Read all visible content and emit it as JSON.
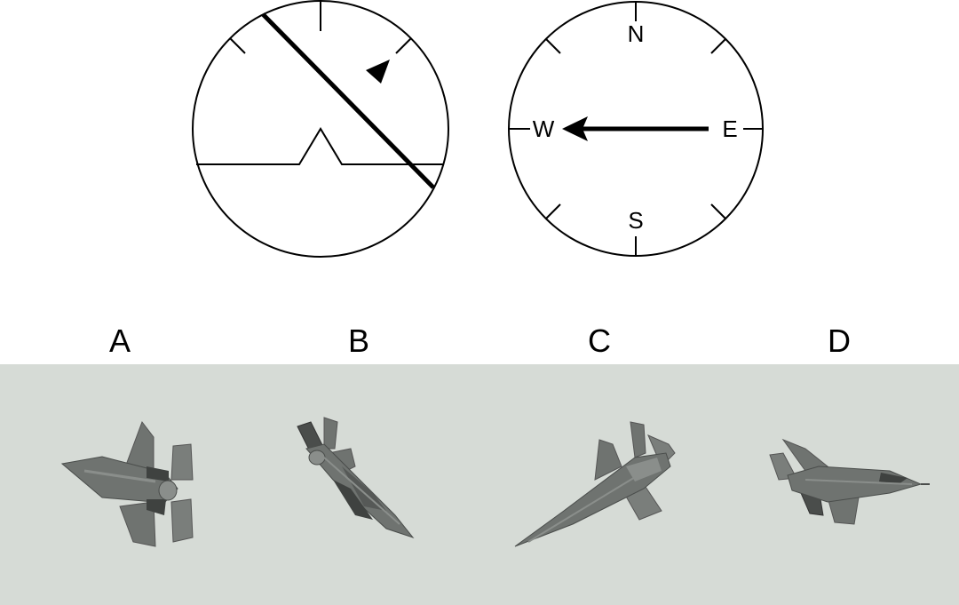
{
  "compass": {
    "north": "N",
    "south": "S",
    "east": "E",
    "west": "W",
    "heading": "W"
  },
  "options": [
    {
      "label": "A"
    },
    {
      "label": "B"
    },
    {
      "label": "C"
    },
    {
      "label": "D"
    }
  ],
  "colors": {
    "panel_background": "#d6dbd6",
    "aircraft_body": "#6f7370",
    "aircraft_dark": "#3f4240",
    "aircraft_light": "#8a8e8b",
    "gauge_stroke": "#000000"
  },
  "icons": {
    "attitude_indicator": "artificial-horizon-icon",
    "heading_indicator": "compass-icon",
    "aircraft": "fighter-jet-icon"
  }
}
